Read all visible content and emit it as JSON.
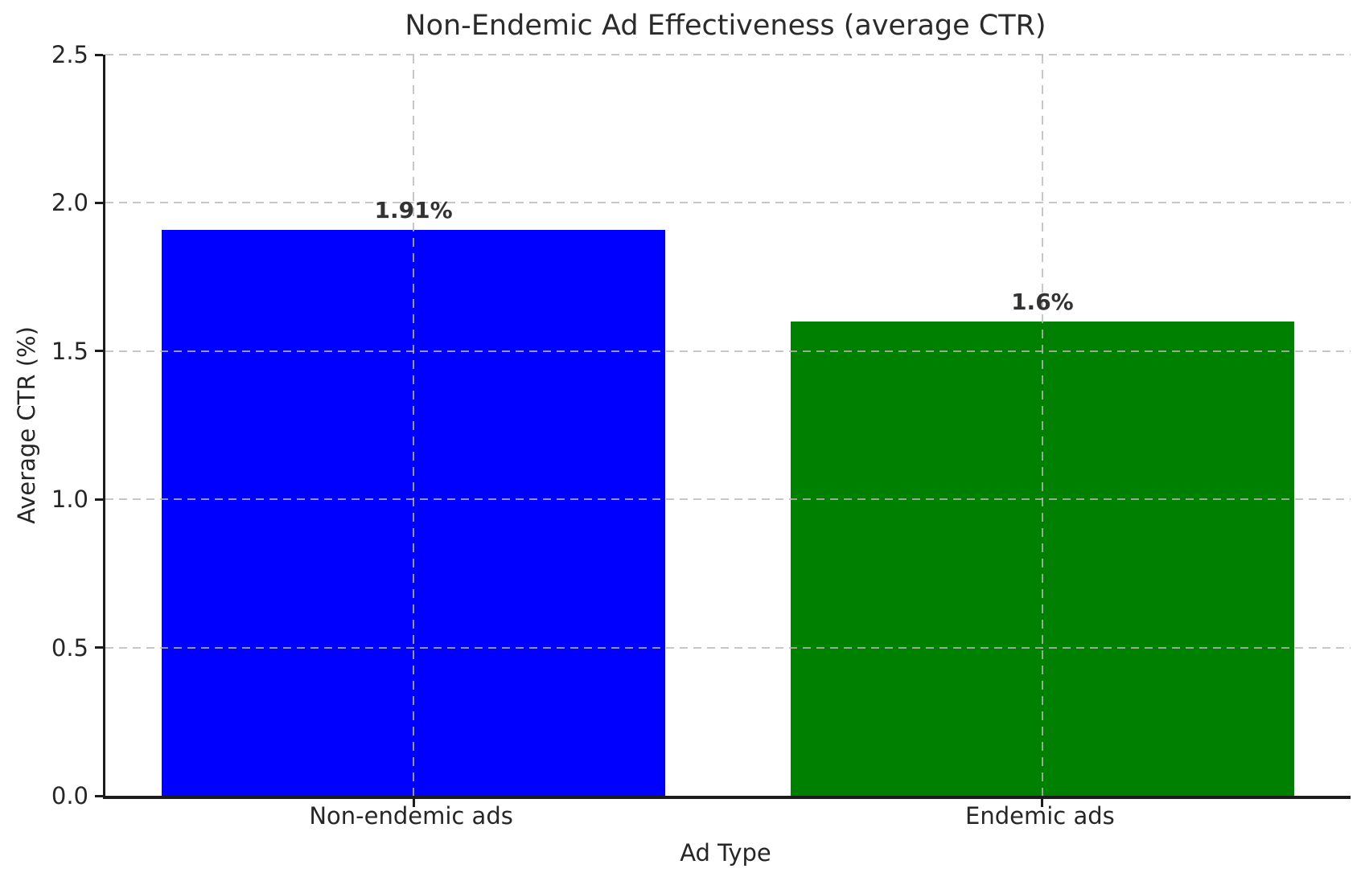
{
  "chart_data": {
    "type": "bar",
    "title": "Non-Endemic Ad Effectiveness (average CTR)",
    "xlabel": "Ad Type",
    "ylabel": "Average CTR (%)",
    "categories": [
      "Non-endemic ads",
      "Endemic ads"
    ],
    "values": [
      1.91,
      1.6
    ],
    "value_labels": [
      "1.91%",
      "1.6%"
    ],
    "bar_colors": [
      "#0000ff",
      "#008000"
    ],
    "ylim": [
      0,
      2.5
    ],
    "yticks": [
      0.0,
      0.5,
      1.0,
      1.5,
      2.0,
      2.5
    ],
    "ytick_labels": [
      "0.0",
      "0.5",
      "1.0",
      "1.5",
      "2.0",
      "2.5"
    ],
    "grid": true,
    "grid_linestyle": "dashed",
    "grid_color": "#b9b9b9",
    "grid_above_bars": true,
    "bar_width_fraction": 0.8,
    "legend": "none",
    "spines_hidden": [
      "top",
      "right"
    ],
    "colors": {
      "title_text": "#2b2b2b",
      "axis_text": "#262626",
      "value_label_text": "#333333",
      "spine": "#1c1c1c"
    }
  }
}
